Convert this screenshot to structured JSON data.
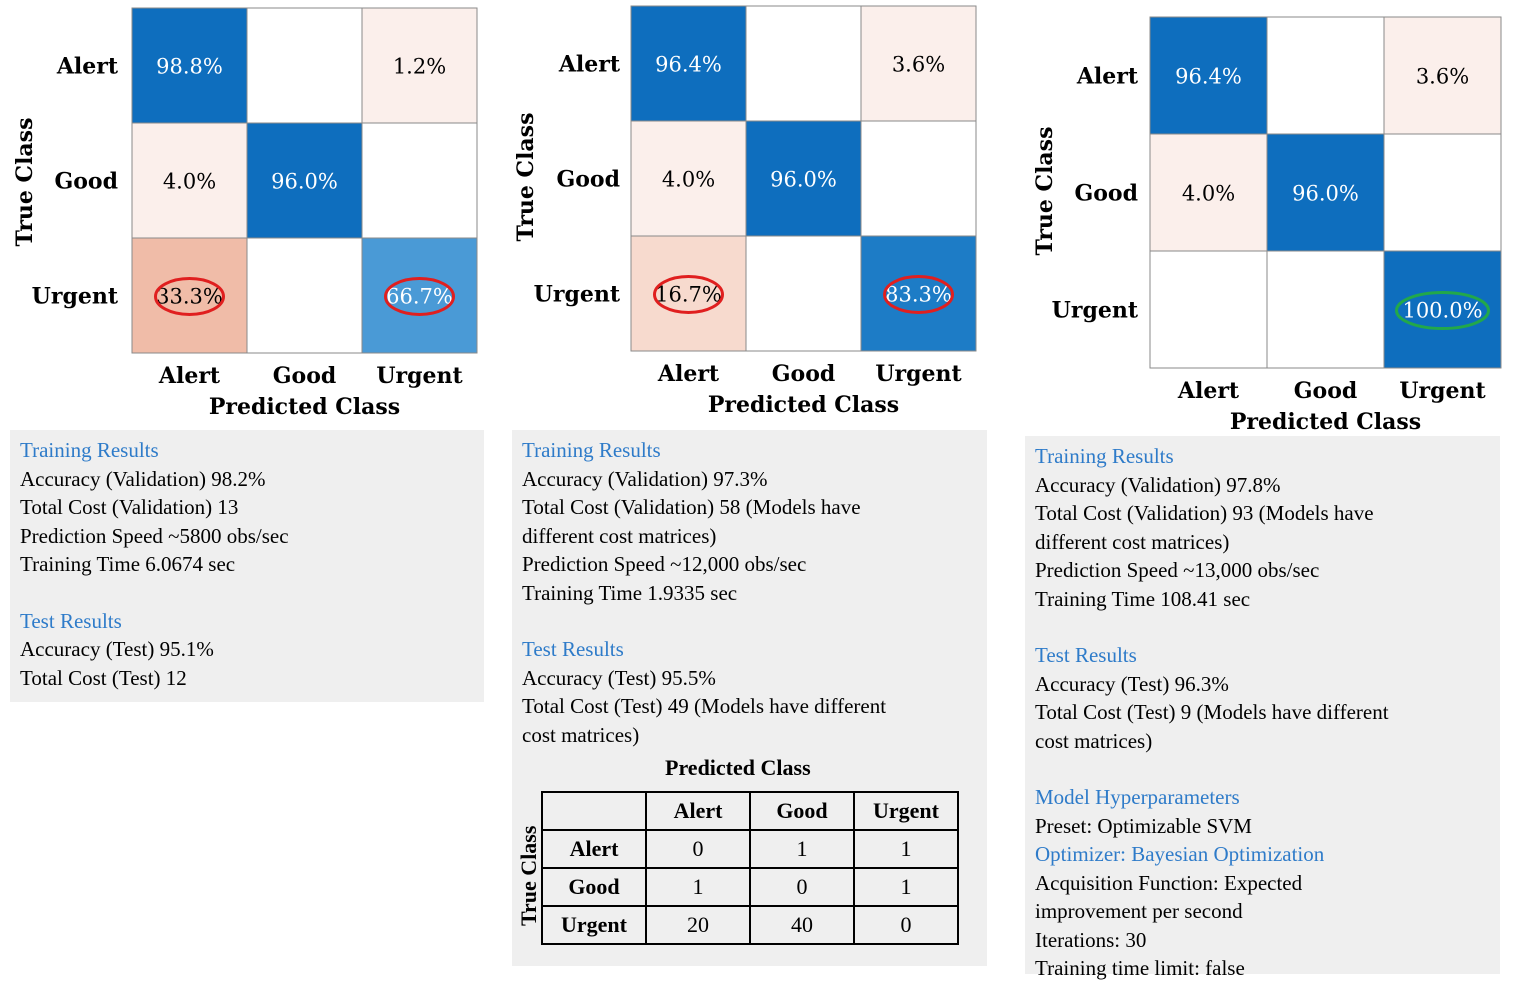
{
  "chart_data": [
    {
      "type": "heatmap",
      "title": "",
      "xlabel": "Predicted Class",
      "ylabel": "True Class",
      "row_labels": [
        "Alert",
        "Good",
        "Urgent"
      ],
      "col_labels": [
        "Alert",
        "Good",
        "Urgent"
      ],
      "values": [
        [
          98.8,
          null,
          1.2
        ],
        [
          4.0,
          96.0,
          null
        ],
        [
          33.3,
          null,
          66.7
        ]
      ],
      "cell_text": [
        [
          "98.8%",
          "",
          "1.2%"
        ],
        [
          "4.0%",
          "96.0%",
          ""
        ],
        [
          "33.3%",
          "",
          "66.7%"
        ]
      ],
      "highlighted_cells": [
        {
          "row": 2,
          "col": 0,
          "color": "#e01f1f"
        },
        {
          "row": 2,
          "col": 2,
          "color": "#e01f1f"
        }
      ]
    },
    {
      "type": "heatmap",
      "title": "",
      "xlabel": "Predicted Class",
      "ylabel": "True Class",
      "row_labels": [
        "Alert",
        "Good",
        "Urgent"
      ],
      "col_labels": [
        "Alert",
        "Good",
        "Urgent"
      ],
      "values": [
        [
          96.4,
          null,
          3.6
        ],
        [
          4.0,
          96.0,
          null
        ],
        [
          16.7,
          null,
          83.3
        ]
      ],
      "cell_text": [
        [
          "96.4%",
          "",
          "3.6%"
        ],
        [
          "4.0%",
          "96.0%",
          ""
        ],
        [
          "16.7%",
          "",
          "83.3%"
        ]
      ],
      "highlighted_cells": [
        {
          "row": 2,
          "col": 0,
          "color": "#e01f1f"
        },
        {
          "row": 2,
          "col": 2,
          "color": "#e01f1f"
        }
      ]
    },
    {
      "type": "heatmap",
      "title": "",
      "xlabel": "Predicted Class",
      "ylabel": "True Class",
      "row_labels": [
        "Alert",
        "Good",
        "Urgent"
      ],
      "col_labels": [
        "Alert",
        "Good",
        "Urgent"
      ],
      "values": [
        [
          96.4,
          null,
          3.6
        ],
        [
          4.0,
          96.0,
          null
        ],
        [
          null,
          null,
          100.0
        ]
      ],
      "cell_text": [
        [
          "96.4%",
          "",
          "3.6%"
        ],
        [
          "4.0%",
          "96.0%",
          ""
        ],
        [
          "",
          "",
          "100.0%"
        ]
      ],
      "highlighted_cells": [
        {
          "row": 2,
          "col": 2,
          "color": "#22a84a"
        }
      ]
    }
  ],
  "colors": {
    "high_blue": "#0e6ebe",
    "mid_blue": "#1d7cc6",
    "light_blue": "#4a9ad6",
    "pale_pink": "#fbefeb",
    "salmon": "#f0bca8",
    "light_salmon": "#f7dace",
    "white": "#ffffff",
    "section_heading": "#2e7bc9",
    "box_bg": "#efefef"
  },
  "panels": [
    {
      "training_heading": "Training Results",
      "training_lines": [
        "Accuracy (Validation) 98.2%",
        "Total Cost (Validation) 13",
        "Prediction Speed ~5800 obs/sec",
        "Training Time 6.0674 sec"
      ],
      "test_heading": "Test Results",
      "test_lines": [
        "Accuracy (Test) 95.1%",
        "Total Cost (Test) 12"
      ]
    },
    {
      "training_heading": "Training Results",
      "training_lines": [
        "Accuracy (Validation) 97.3%",
        "Total Cost (Validation) 58 (Models have",
        "different cost matrices)",
        "Prediction Speed ~12,000 obs/sec",
        "Training Time 1.9335 sec"
      ],
      "test_heading": "Test Results",
      "test_lines": [
        "Accuracy (Test) 95.5%",
        "Total Cost (Test) 49 (Models have different",
        "cost matrices)"
      ],
      "cost_matrix": {
        "title": "Predicted Class",
        "ylabel": "True Class",
        "columns": [
          "Alert",
          "Good",
          "Urgent"
        ],
        "rows": [
          {
            "label": "Alert",
            "values": [
              "0",
              "1",
              "1"
            ]
          },
          {
            "label": "Good",
            "values": [
              "1",
              "0",
              "1"
            ]
          },
          {
            "label": "Urgent",
            "values": [
              "20",
              "40",
              "0"
            ]
          }
        ]
      }
    },
    {
      "training_heading": "Training Results",
      "training_lines": [
        "Accuracy (Validation) 97.8%",
        "Total Cost (Validation) 93 (Models have",
        "different cost matrices)",
        "Prediction Speed ~13,000 obs/sec",
        "Training Time 108.41 sec"
      ],
      "test_heading": "Test Results",
      "test_lines": [
        "Accuracy (Test) 96.3%",
        "Total Cost (Test) 9 (Models have different",
        "cost matrices)"
      ],
      "hyper_heading": "Model Hyperparameters",
      "hyper_lines_a": [
        "Preset: Optimizable SVM"
      ],
      "optimizer_heading": "Optimizer: Bayesian Optimization",
      "hyper_lines_b": [
        "Acquisition Function: Expected",
        "improvement per second",
        "Iterations: 30",
        "Training time limit: false"
      ]
    }
  ]
}
